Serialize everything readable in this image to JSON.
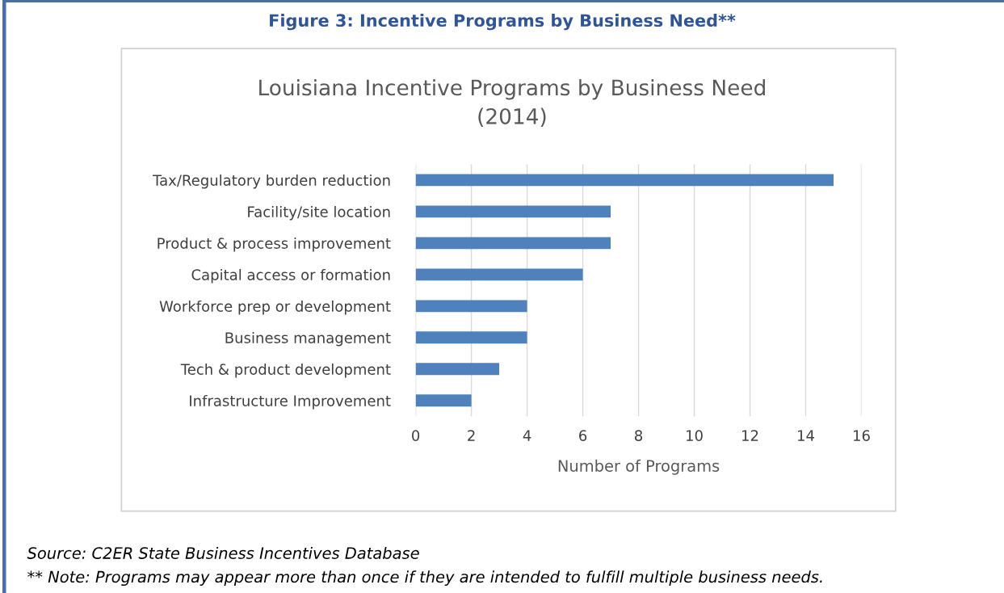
{
  "chart_data": {
    "type": "bar",
    "orientation": "horizontal",
    "title": "Figure 3: Incentive Programs by Business Need**",
    "subtitle": "Louisiana Incentive Programs by Business Need\n(2014)",
    "xlabel": "Number of Programs",
    "categories": [
      "Tax/Regulatory burden reduction",
      "Facility/site location",
      "Product & process improvement",
      "Capital access or formation",
      "Workforce prep or development",
      "Business management",
      "Tech & product development",
      "Infrastructure Improvement"
    ],
    "values": [
      15,
      7,
      7,
      6,
      4,
      4,
      3,
      2
    ],
    "color": "#4f81bd",
    "xlim": [
      0,
      16
    ],
    "xticks": [
      0,
      2,
      4,
      6,
      8,
      10,
      12,
      14,
      16
    ],
    "grid": "x",
    "legend": false,
    "annotations": [
      "Source: C2ER State Business Incentives Database",
      "** Note: Programs may appear more than once if they are intended to fulfill multiple business needs."
    ]
  }
}
